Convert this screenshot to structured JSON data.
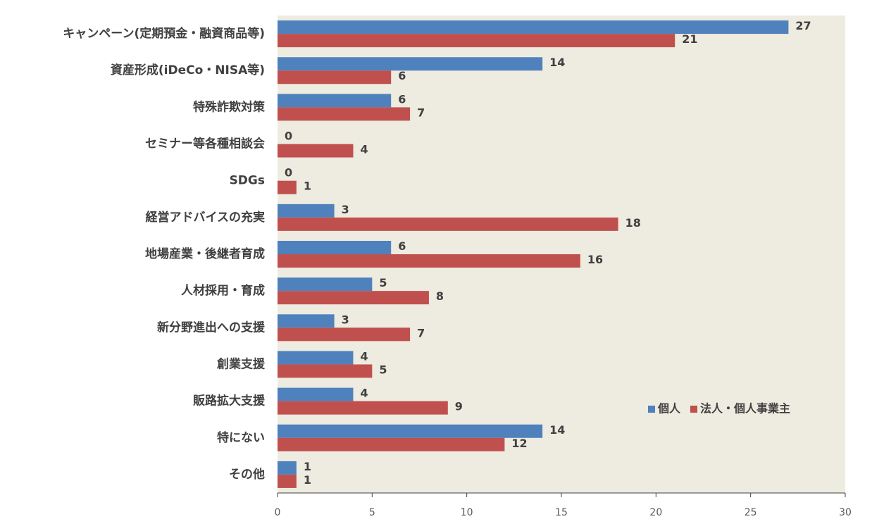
{
  "chart_data": {
    "type": "bar",
    "orientation": "horizontal",
    "categories": [
      "キャンペーン(定期預金・融資商品等)",
      "資産形成(iDeCo・NISA等)",
      "特殊詐欺対策",
      "セミナー等各種相談会",
      "SDGs",
      "経営アドバイスの充実",
      "地場産業・後継者育成",
      "人材採用・育成",
      "新分野進出への支援",
      "創業支援",
      "販路拡大支援",
      "特にない",
      "その他"
    ],
    "series": [
      {
        "name": "個人",
        "color": "#4F81BD",
        "values": [
          27,
          14,
          6,
          0,
          0,
          3,
          6,
          5,
          3,
          4,
          4,
          14,
          1
        ]
      },
      {
        "name": "法人・個人事業主",
        "color": "#C0504D",
        "values": [
          21,
          6,
          7,
          4,
          1,
          18,
          16,
          8,
          7,
          5,
          9,
          12,
          1
        ]
      }
    ],
    "xlim": [
      0,
      30
    ],
    "xticks": [
      0,
      5,
      10,
      15,
      20,
      25,
      30
    ],
    "legend": "lower right"
  }
}
